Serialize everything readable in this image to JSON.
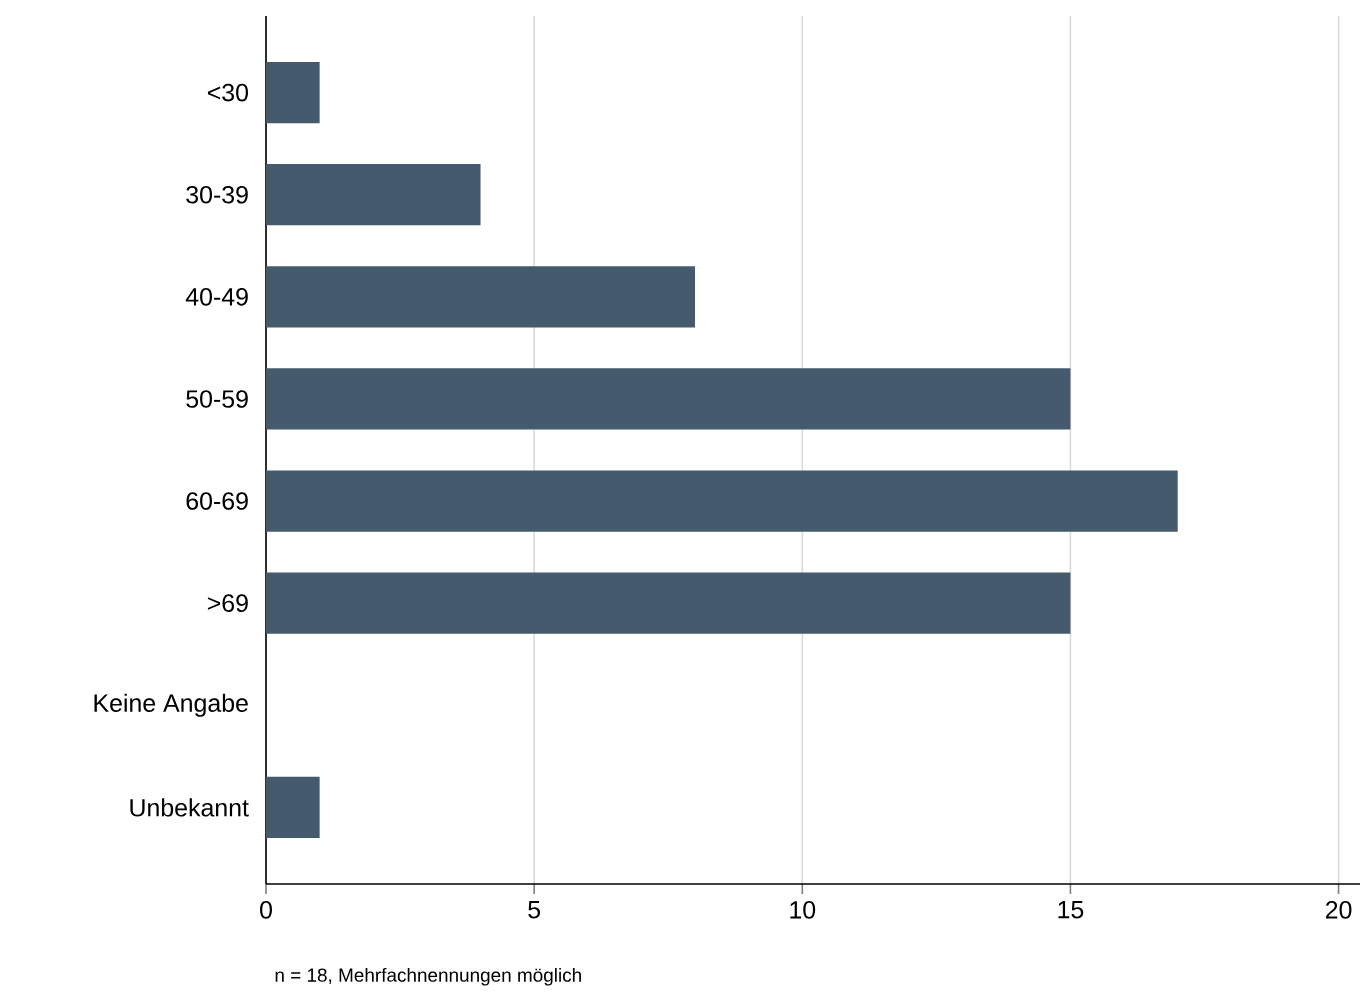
{
  "chart_data": {
    "type": "bar",
    "orientation": "horizontal",
    "categories": [
      "<30",
      "30-39",
      "40-49",
      "50-59",
      "60-69",
      ">69",
      "Keine Angabe",
      "Unbekannt"
    ],
    "values": [
      1,
      4,
      8,
      15,
      17,
      15,
      0,
      1
    ],
    "color": "#465a6e",
    "xlim": [
      0,
      20.4
    ],
    "xticks": [
      0,
      5,
      10,
      15,
      20
    ],
    "grid": "x",
    "annotations": [
      "n = 18, Mehrfachnennungen möglich"
    ]
  }
}
